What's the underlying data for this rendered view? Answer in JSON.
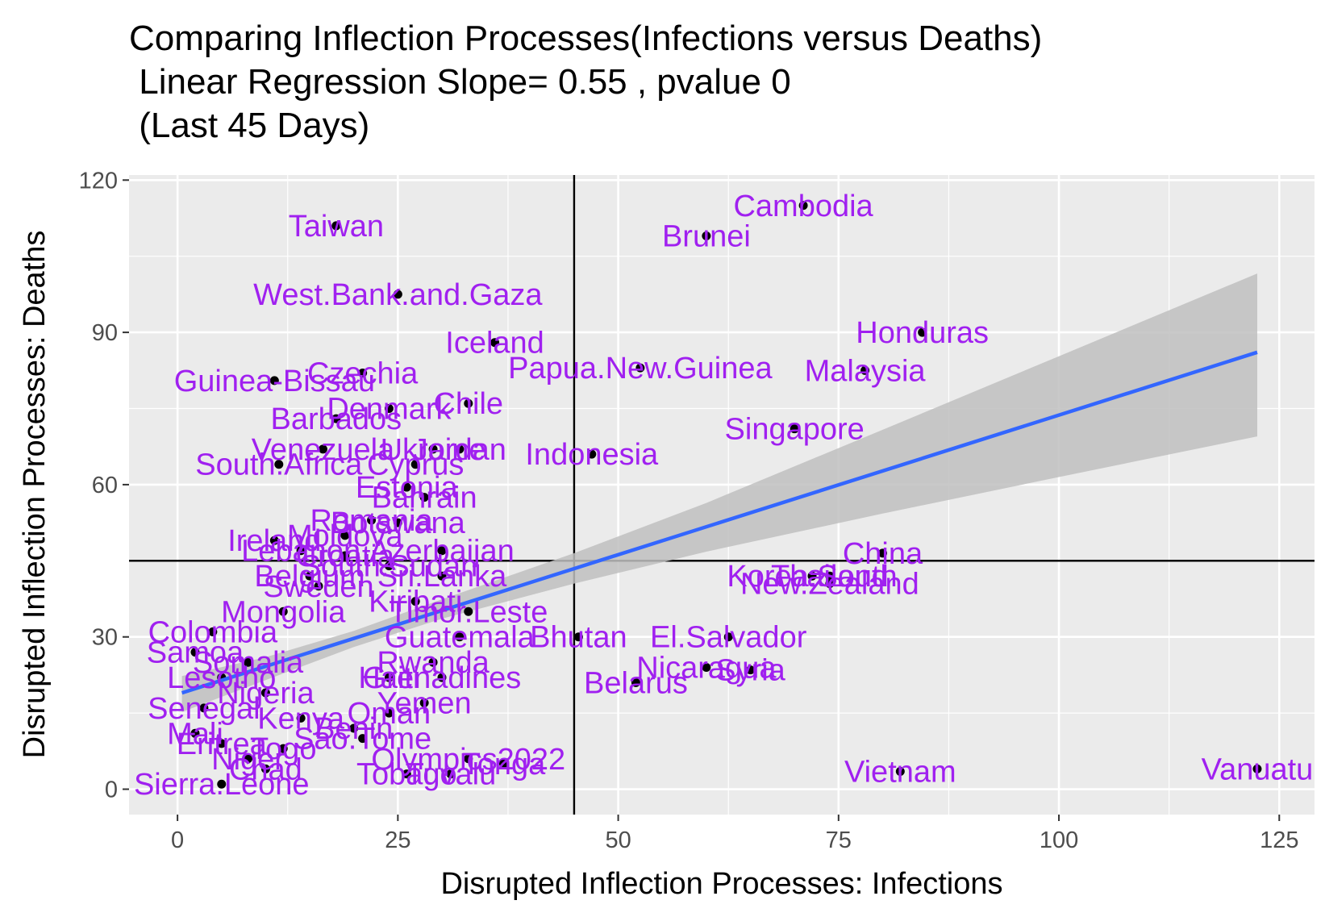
{
  "chart_data": {
    "type": "scatter",
    "title": "Comparing Inflection Processes(Infections versus Deaths)",
    "subtitle_lines": [
      " Linear Regression Slope= 0.55 , pvalue 0",
      " (Last 45 Days)"
    ],
    "xlabel": "Disrupted Inflection Processes: Infections",
    "ylabel": "Disrupted Inflection Processes: Deaths",
    "xlim": [
      -5.5,
      129
    ],
    "ylim": [
      -5,
      121
    ],
    "x_ticks": [
      0,
      25,
      50,
      75,
      100,
      125
    ],
    "y_ticks": [
      0,
      30,
      60,
      90,
      120
    ],
    "grid": true,
    "point_color": "#000000",
    "label_color": "#a020f0",
    "background_color": "#ebebeb",
    "reference_lines": {
      "vertical_x": 45,
      "horizontal_y": 45
    },
    "regression": {
      "line_color": "#3366ff",
      "band_color": "#bfbfbf",
      "x_range": [
        0.5,
        122.5
      ],
      "slope": 0.55,
      "intercept": 18.7,
      "band": [
        {
          "x": 0.5,
          "lo": 15.2,
          "hi": 22.3
        },
        {
          "x": 10,
          "lo": 21.5,
          "hi": 26.0
        },
        {
          "x": 20,
          "lo": 28.0,
          "hi": 31.2
        },
        {
          "x": 30,
          "lo": 33.6,
          "hi": 37.4
        },
        {
          "x": 45,
          "lo": 40.5,
          "hi": 46.5
        },
        {
          "x": 60,
          "lo": 46.8,
          "hi": 56.4
        },
        {
          "x": 80,
          "lo": 54.3,
          "hi": 70.8
        },
        {
          "x": 100,
          "lo": 61.5,
          "hi": 85.3
        },
        {
          "x": 122.5,
          "lo": 69.5,
          "hi": 101.6
        }
      ]
    },
    "points": [
      {
        "label": "Taiwan",
        "x": 18,
        "y": 111
      },
      {
        "label": "Cambodia",
        "x": 71,
        "y": 115
      },
      {
        "label": "Brunei",
        "x": 60,
        "y": 109
      },
      {
        "label": "West.Bank.and.Gaza",
        "x": 25,
        "y": 97.5
      },
      {
        "label": "Iceland",
        "x": 36,
        "y": 88
      },
      {
        "label": "Honduras",
        "x": 84.5,
        "y": 90
      },
      {
        "label": "Papua.New.Guinea",
        "x": 52.5,
        "y": 83
      },
      {
        "label": "Malaysia",
        "x": 78,
        "y": 82.5
      },
      {
        "label": "Guinea-Bissau",
        "x": 11,
        "y": 80.5
      },
      {
        "label": "Czechia",
        "x": 21,
        "y": 82
      },
      {
        "label": "Chile",
        "x": 33,
        "y": 76
      },
      {
        "label": "Denmark",
        "x": 24,
        "y": 75
      },
      {
        "label": "Barbados",
        "x": 18,
        "y": 73
      },
      {
        "label": "Singapore",
        "x": 70,
        "y": 71
      },
      {
        "label": "Venezuela",
        "x": 16.5,
        "y": 67
      },
      {
        "label": "Ukraine",
        "x": 29,
        "y": 67
      },
      {
        "label": "Jordan",
        "x": 32,
        "y": 67
      },
      {
        "label": "Indonesia",
        "x": 47,
        "y": 66
      },
      {
        "label": "South.Africa",
        "x": 11.5,
        "y": 64
      },
      {
        "label": "Cyprus",
        "x": 27,
        "y": 64
      },
      {
        "label": "Estonia",
        "x": 26,
        "y": 59.5
      },
      {
        "label": "Bahrain",
        "x": 28,
        "y": 57.5
      },
      {
        "label": "Romania",
        "x": 22,
        "y": 53
      },
      {
        "label": "Botswana",
        "x": 25,
        "y": 52.5
      },
      {
        "label": "Moldova",
        "x": 19,
        "y": 50
      },
      {
        "label": "Ireland",
        "x": 11,
        "y": 49
      },
      {
        "label": "Azerbaijan",
        "x": 30,
        "y": 47
      },
      {
        "label": "Lebanon",
        "x": 14,
        "y": 47
      },
      {
        "label": "Croatia",
        "x": 19,
        "y": 46
      },
      {
        "label": "South.Sudan",
        "x": 24,
        "y": 44
      },
      {
        "label": "Sri.Lanka",
        "x": 30,
        "y": 42
      },
      {
        "label": "Belgium",
        "x": 15,
        "y": 42
      },
      {
        "label": "Sweden",
        "x": 16,
        "y": 40
      },
      {
        "label": "Timor.Leste",
        "x": 33,
        "y": 35
      },
      {
        "label": "Kiribati",
        "x": 27,
        "y": 37
      },
      {
        "label": "Mongolia",
        "x": 12,
        "y": 35
      },
      {
        "label": "China",
        "x": 80,
        "y": 46.5
      },
      {
        "label": "Korea.South",
        "x": 72,
        "y": 42
      },
      {
        "label": "Thailand",
        "x": 74,
        "y": 42
      },
      {
        "label": "New.Zealand",
        "x": 74,
        "y": 40.5
      },
      {
        "label": "Guatemala",
        "x": 32,
        "y": 30
      },
      {
        "label": "Bhutan",
        "x": 45.5,
        "y": 30
      },
      {
        "label": "El.Salvador",
        "x": 62.5,
        "y": 30
      },
      {
        "label": "Nicaragua",
        "x": 60,
        "y": 24
      },
      {
        "label": "Syria",
        "x": 65,
        "y": 23.5
      },
      {
        "label": "Belarus",
        "x": 52,
        "y": 21
      },
      {
        "label": "Grenadines",
        "x": 30,
        "y": 22
      },
      {
        "label": "Rwanda",
        "x": 29,
        "y": 25
      },
      {
        "label": "Haiti",
        "x": 24,
        "y": 22
      },
      {
        "label": "Yemen",
        "x": 28,
        "y": 17
      },
      {
        "label": "Oman",
        "x": 24,
        "y": 15
      },
      {
        "label": "Benin",
        "x": 20,
        "y": 12
      },
      {
        "label": "Sao.Tome",
        "x": 21,
        "y": 10
      },
      {
        "label": "Kenya",
        "x": 14,
        "y": 14
      },
      {
        "label": "Nigeria",
        "x": 10,
        "y": 19
      },
      {
        "label": "Somalia",
        "x": 8,
        "y": 25
      },
      {
        "label": "Lesotho",
        "x": 5,
        "y": 22
      },
      {
        "label": "Senegal",
        "x": 3,
        "y": 16
      },
      {
        "label": "Samoa",
        "x": 2,
        "y": 27
      },
      {
        "label": "Colombia",
        "x": 4,
        "y": 31
      },
      {
        "label": "Togo",
        "x": 12,
        "y": 8
      },
      {
        "label": "Tonga",
        "x": 37,
        "y": 5
      },
      {
        "label": "Olympics2022",
        "x": 33,
        "y": 6
      },
      {
        "label": "Tuvalu",
        "x": 31,
        "y": 3
      },
      {
        "label": "Tobago",
        "x": 26,
        "y": 3
      },
      {
        "label": "Chad",
        "x": 10,
        "y": 4
      },
      {
        "label": "Niger",
        "x": 8,
        "y": 6
      },
      {
        "label": "Eritrea",
        "x": 5,
        "y": 9
      },
      {
        "label": "Mali",
        "x": 2,
        "y": 11
      },
      {
        "label": "Sierra.Leone",
        "x": 5,
        "y": 1
      },
      {
        "label": "Vietnam",
        "x": 82,
        "y": 3.5
      },
      {
        "label": "Vanuatu",
        "x": 122.5,
        "y": 4
      }
    ]
  }
}
